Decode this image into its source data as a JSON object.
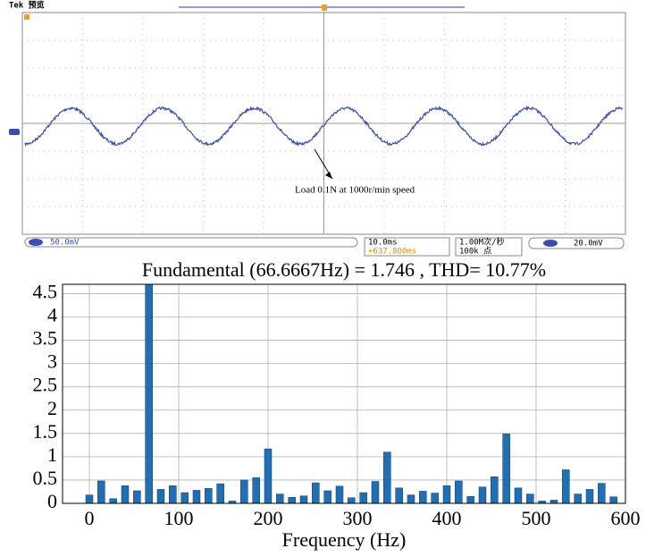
{
  "scope": {
    "brand": "Tek 预览",
    "ch1_scale": "50.0mV",
    "timebase": "10.0ms",
    "position": "+637.800ms",
    "sample_rate": "1.00M次/秒",
    "record_length": "100k 点",
    "trigger": "20.0mV",
    "annotation": "Load 0.1N at 1000r/min speed"
  },
  "chart_data": {
    "type": "bar",
    "title": "Fundamental (66.6667Hz) = 1.746 , THD= 10.77%",
    "x_label": "Frequency (Hz)",
    "color": "#1f6fb2",
    "x": [
      0,
      13.33,
      26.67,
      40,
      53.33,
      66.67,
      80,
      93.33,
      106.67,
      120,
      133.33,
      146.67,
      160,
      173.33,
      186.67,
      200,
      213.33,
      226.67,
      240,
      253.33,
      266.67,
      280,
      293.33,
      306.67,
      320,
      333.33,
      346.67,
      360,
      373.33,
      386.67,
      400,
      413.33,
      426.67,
      440,
      453.33,
      466.67,
      480,
      493.33,
      506.67,
      520,
      533.33,
      546.67,
      560,
      573.33,
      586.67
    ],
    "values": [
      0.18,
      0.48,
      0.1,
      0.38,
      0.27,
      4.7,
      0.3,
      0.38,
      0.23,
      0.28,
      0.32,
      0.42,
      0.05,
      0.5,
      0.55,
      1.17,
      0.2,
      0.13,
      0.16,
      0.44,
      0.27,
      0.37,
      0.12,
      0.23,
      0.47,
      1.1,
      0.33,
      0.18,
      0.26,
      0.22,
      0.38,
      0.48,
      0.15,
      0.35,
      0.57,
      1.49,
      0.33,
      0.2,
      0.05,
      0.07,
      0.72,
      0.2,
      0.3,
      0.43,
      0.14
    ],
    "xlim": [
      -30,
      600
    ],
    "ylim": [
      0,
      4.7
    ],
    "xticks": [
      0,
      100,
      200,
      300,
      400,
      500,
      600
    ],
    "yticks": [
      0,
      0.5,
      1,
      1.5,
      2,
      2.5,
      3,
      3.5,
      4,
      4.5
    ],
    "grid": true
  }
}
